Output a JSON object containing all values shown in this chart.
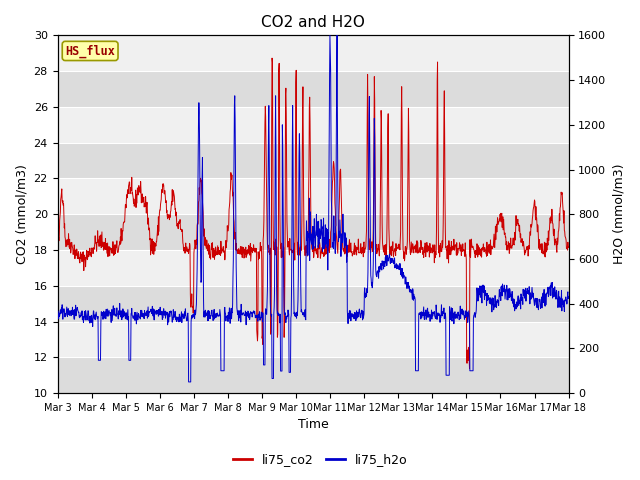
{
  "title": "CO2 and H2O",
  "xlabel": "Time",
  "ylabel_left": "CO2 (mmol/m3)",
  "ylabel_right": "H2O (mmol/m3)",
  "ylim_left": [
    10,
    30
  ],
  "ylim_right": [
    0,
    1600
  ],
  "yticks_left": [
    10,
    12,
    14,
    16,
    18,
    20,
    22,
    24,
    26,
    28,
    30
  ],
  "yticks_right": [
    0,
    200,
    400,
    600,
    800,
    1000,
    1200,
    1400,
    1600
  ],
  "xtick_labels": [
    "Mar 3",
    "Mar 4",
    "Mar 5",
    "Mar 6",
    "Mar 7",
    "Mar 8",
    "Mar 9",
    "Mar 10",
    "Mar 11",
    "Mar 12",
    "Mar 13",
    "Mar 14",
    "Mar 15",
    "Mar 16",
    "Mar 17",
    "Mar 18"
  ],
  "bg_color_light": "#f0f0f0",
  "bg_color_dark": "#dcdcdc",
  "co2_color": "#cc0000",
  "h2o_color": "#0000cc",
  "legend_label_co2": "li75_co2",
  "legend_label_h2o": "li75_h2o",
  "tag_text": "HS_flux",
  "tag_bg": "#ffffaa",
  "tag_border": "#999900",
  "fig_width": 6.4,
  "fig_height": 4.8,
  "dpi": 100
}
